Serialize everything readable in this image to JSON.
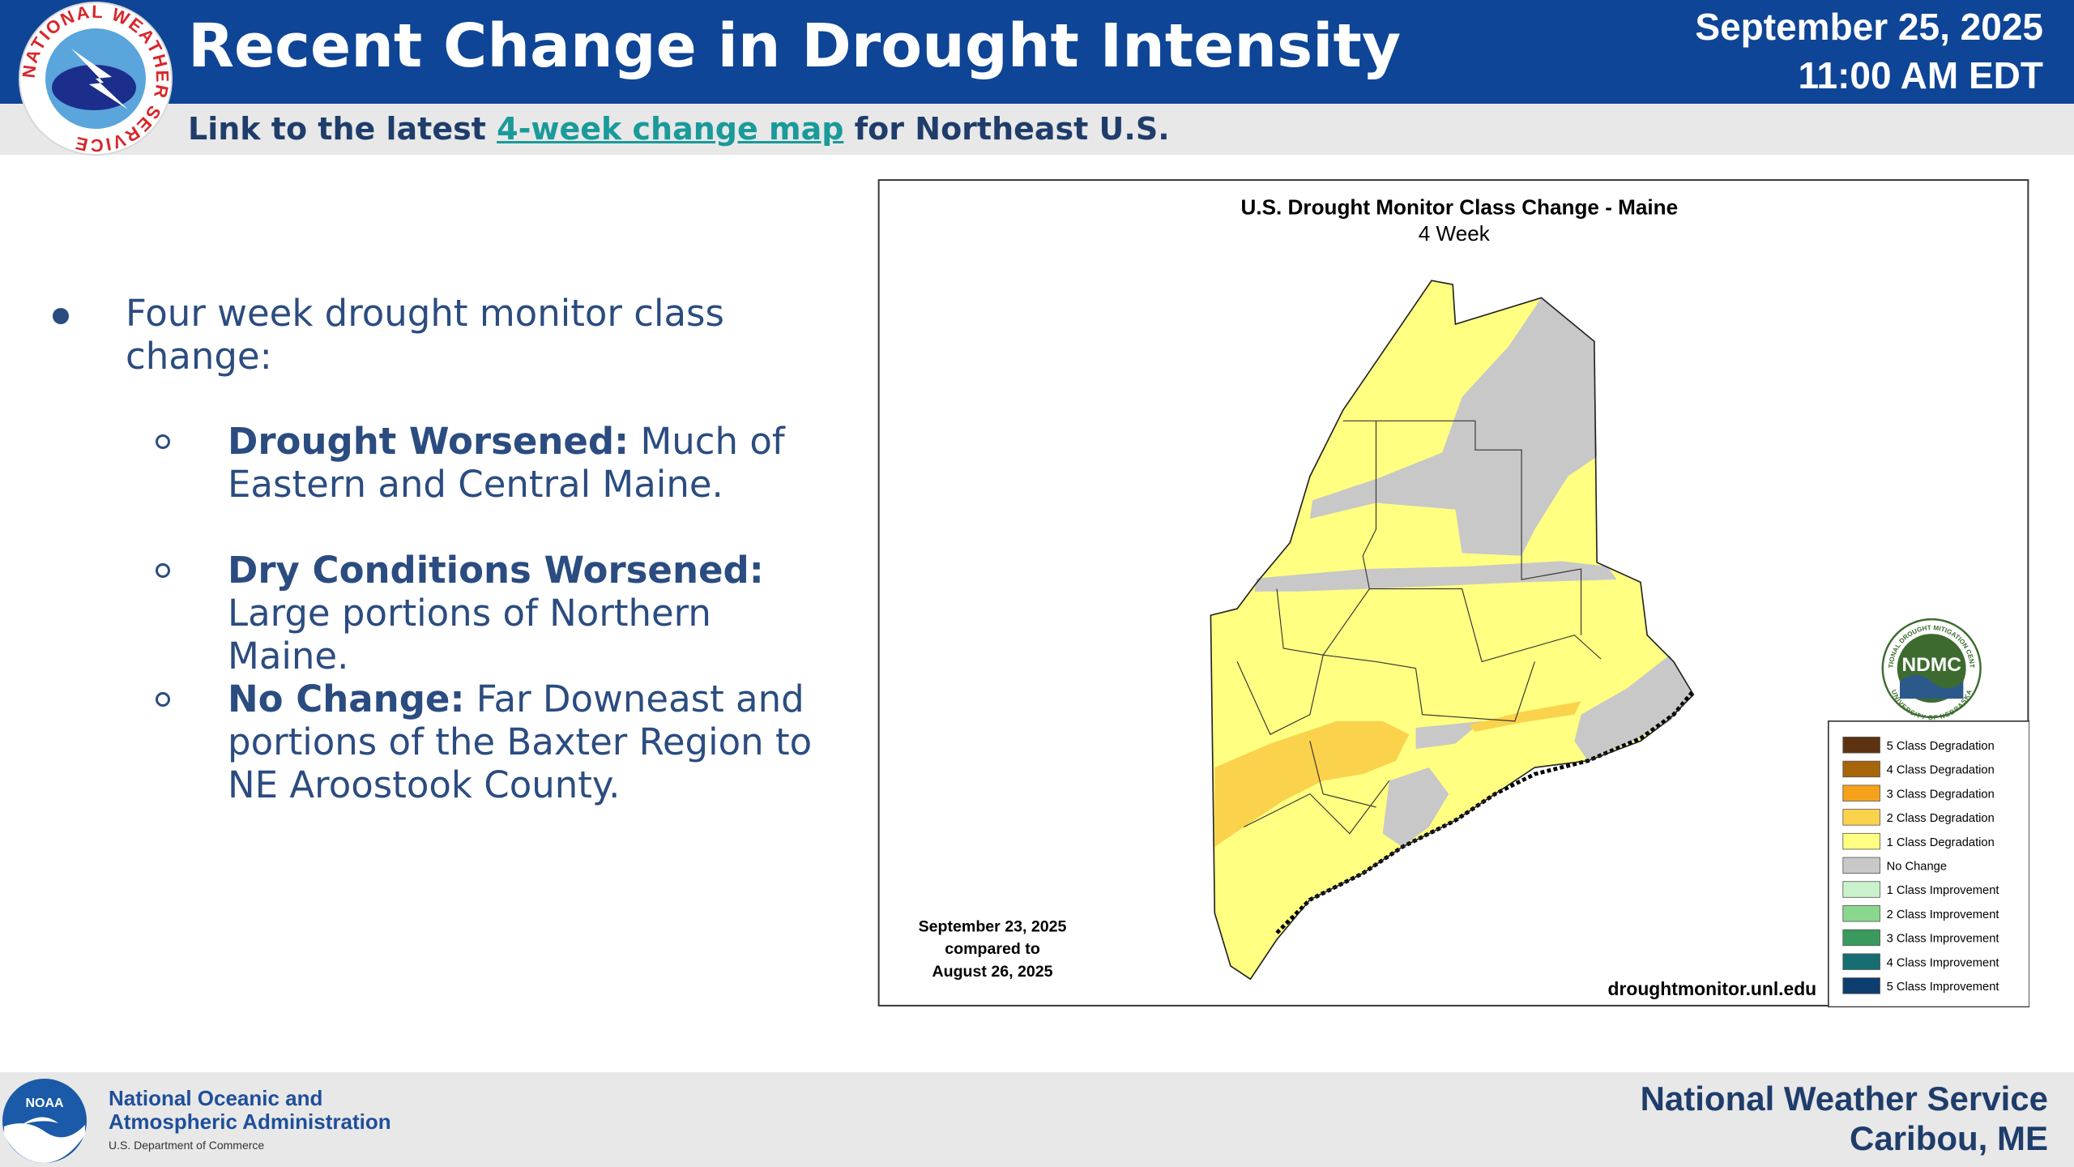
{
  "header": {
    "title": "Recent Change in Drought Intensity",
    "date": "September 25, 2025",
    "time": "11:00 AM EDT",
    "link_prefix": "Link to the latest ",
    "link_text": "4-week change map",
    "link_suffix": " for Northeast U.S."
  },
  "logo": {
    "nws": "NATIONAL WEATHER SERVICE"
  },
  "bullets": {
    "main": "Four week drought monitor class change:",
    "items": [
      {
        "label": "Drought Worsened:",
        "text": " Much of Eastern and Central Maine."
      },
      {
        "label": "Dry Conditions Worsened:",
        "text": " Large portions of Northern Maine."
      },
      {
        "label": "No Change:",
        "text": " Far Downeast and portions of the Baxter Region to NE Aroostook County."
      }
    ]
  },
  "map": {
    "title": "U.S. Drought Monitor Class Change - Maine",
    "subtitle": "4 Week",
    "comparison": [
      "September 23, 2025",
      "compared to",
      "August 26, 2025"
    ],
    "source": "droughtmonitor.unl.edu",
    "ndmc": "NDMC",
    "ndmc_ring_top": "NATIONAL DROUGHT MITIGATION CENTER",
    "ndmc_ring_bottom": "UNIVERSITY OF NEBRASKA",
    "legend": [
      {
        "label": "5 Class Degradation",
        "color": "#5c3210"
      },
      {
        "label": "4 Class Degradation",
        "color": "#a6650a"
      },
      {
        "label": "3 Class Degradation",
        "color": "#f5a21a"
      },
      {
        "label": "2 Class Degradation",
        "color": "#fbd24c"
      },
      {
        "label": "1 Class Degradation",
        "color": "#ffff82"
      },
      {
        "label": "No Change",
        "color": "#c8c8c8"
      },
      {
        "label": "1 Class Improvement",
        "color": "#c9f2cc"
      },
      {
        "label": "2 Class Improvement",
        "color": "#8ad88e"
      },
      {
        "label": "3 Class Improvement",
        "color": "#3a9a5e"
      },
      {
        "label": "4 Class Improvement",
        "color": "#166e73"
      },
      {
        "label": "5 Class Improvement",
        "color": "#0e3d6f"
      }
    ]
  },
  "footer": {
    "noaa_logo": "NOAA",
    "org_line1": "National Oceanic and",
    "org_line2": "Atmospheric Administration",
    "department": "U.S. Department of Commerce",
    "office": "National Weather Service",
    "location": "Caribou, ME"
  }
}
